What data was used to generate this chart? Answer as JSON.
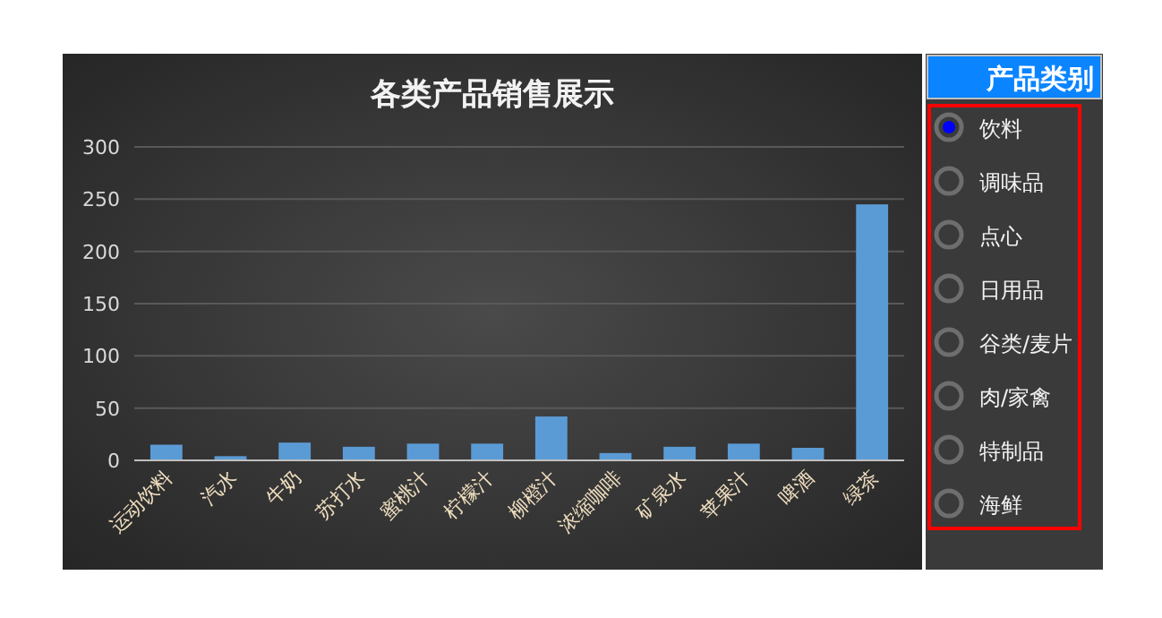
{
  "chart_data": [
    {
      "type": "bar",
      "title": "各类产品销售展示",
      "categories": [
        "运动饮料",
        "汽水",
        "牛奶",
        "苏打水",
        "蜜桃汁",
        "柠檬汁",
        "柳橙汁",
        "浓缩咖啡",
        "矿泉水",
        "苹果汁",
        "啤酒",
        "绿茶"
      ],
      "values": [
        15,
        4,
        17,
        13,
        16,
        16,
        42,
        7,
        13,
        16,
        12,
        245
      ],
      "color": "#5b9bd5",
      "ylim": [
        0,
        300
      ],
      "yticks": [
        0,
        50,
        100,
        150,
        200,
        250,
        300
      ],
      "grid": "y"
    },
    {
      "type": "other",
      "title": "产品类别",
      "annotations": [
        "饮料",
        "调味品",
        "点心",
        "日用品",
        "谷类/麦片",
        "肉/家禽",
        "特制品",
        "海鲜"
      ]
    }
  ]
}
